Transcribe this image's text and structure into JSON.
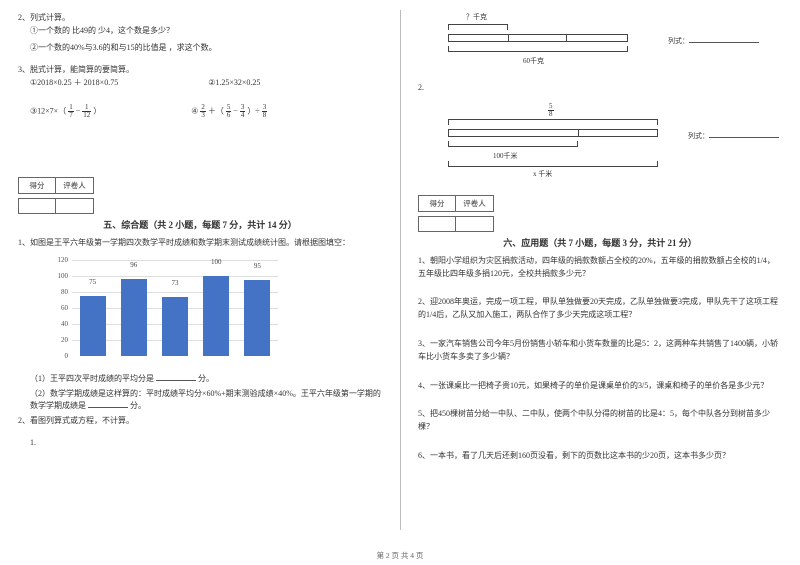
{
  "left": {
    "q2": {
      "head": "2、列式计算。",
      "a": "①一个数的 比49的 少4，这个数是多少？",
      "b": "②一个数的40%与3.6的和与15的比值是 ，求这个数。"
    },
    "q3": {
      "head": "3、脱式计算，能简算的要简算。",
      "a": "①2018×0.25 ＋ 2018×0.75",
      "b": "②1.25×32×0.25",
      "c_pre": "③12×7×（",
      "c_f1n": "1",
      "c_f1d": "7",
      "c_mid": " − ",
      "c_f2n": "1",
      "c_f2d": "12",
      "c_post": "）",
      "d_f1n": "2",
      "d_f1d": "3",
      "d_plus": " ＋（",
      "d_f2n": "5",
      "d_f2d": "6",
      "d_minus": " − ",
      "d_f3n": "3",
      "d_f3d": "4",
      "d_close": "）÷ ",
      "d_f4n": "3",
      "d_f4d": "8",
      "d_pref": "④"
    },
    "score": {
      "l": "得分",
      "r": "评卷人"
    },
    "sec5": {
      "title": "五、综合题（共 2 小题，每题 7 分，共计 14 分）",
      "q1": "1、如图是王平六年级第一学期四次数学平时成绩和数学期末测试成绩统计图。请根据图填空：",
      "s1a": "（1）王平四次平时成绩的平均分是",
      "s1b": "分。",
      "s2a": "（2）数学学期成绩是这样算的：平时成绩平均分×60%+期末测验成绩×40%。王平六年级第一学期的数学学期成绩是",
      "s2b": "分。",
      "q2": "2、看图列算式或方程，不计算。",
      "s2_1": "1."
    },
    "chart": {
      "type": "bar",
      "ylim": [
        0,
        120
      ],
      "ytick_step": 20,
      "yticks": [
        0,
        20,
        40,
        60,
        80,
        100,
        120
      ],
      "values": [
        75,
        96,
        73,
        100,
        95
      ],
      "bar_color": "#4472c4",
      "grid_color": "#dddddd",
      "axis_color": "#888888",
      "label_color": "#444444"
    }
  },
  "right": {
    "d1": {
      "top_label": "？千克",
      "bot_label": "60千克",
      "formula": "列式："
    },
    "num2": "2.",
    "d2": {
      "frac_n": "5",
      "frac_d": "8",
      "mid_label": "100千米",
      "bot_label": "x 千米",
      "formula": "列式："
    },
    "score": {
      "l": "得分",
      "r": "评卷人"
    },
    "sec6": {
      "title": "六、应用题（共 7 小题，每题 3 分，共计 21 分）",
      "q1": "1、朝阳小学组织为灾区捐款活动，四年级的捐款数额占全校的20%，五年级的捐款数额占全校的1/4，五年级比四年级多捐120元，全校共捐款多少元？",
      "q2": "2、迎2008年奥运，完成一项工程，甲队单独做要20天完成，乙队单独做要3完成，甲队先干了这项工程的1/4后，乙队又加入施工，两队合作了多少天完成这项工程？",
      "q3": "3、一家汽车销售公司今年5月份销售小轿车和小货车数量的比是5：2，这两种车共销售了1400辆，小轿车比小货车多卖了多少辆？",
      "q4": "4、一张课桌比一把椅子贵10元，如果椅子的单价是课桌单价的3/5，课桌和椅子的单价各是多少元？",
      "q5": "5、把450棵树苗分给一中队、二中队，使两个中队分得的树苗的比是4：5，每个中队各分到树苗多少棵？",
      "q6": "6、一本书，看了几天后还剩160页没看，剩下的页数比这本书的少20页，这本书多少页？"
    }
  },
  "footer": "第 2 页 共 4 页"
}
